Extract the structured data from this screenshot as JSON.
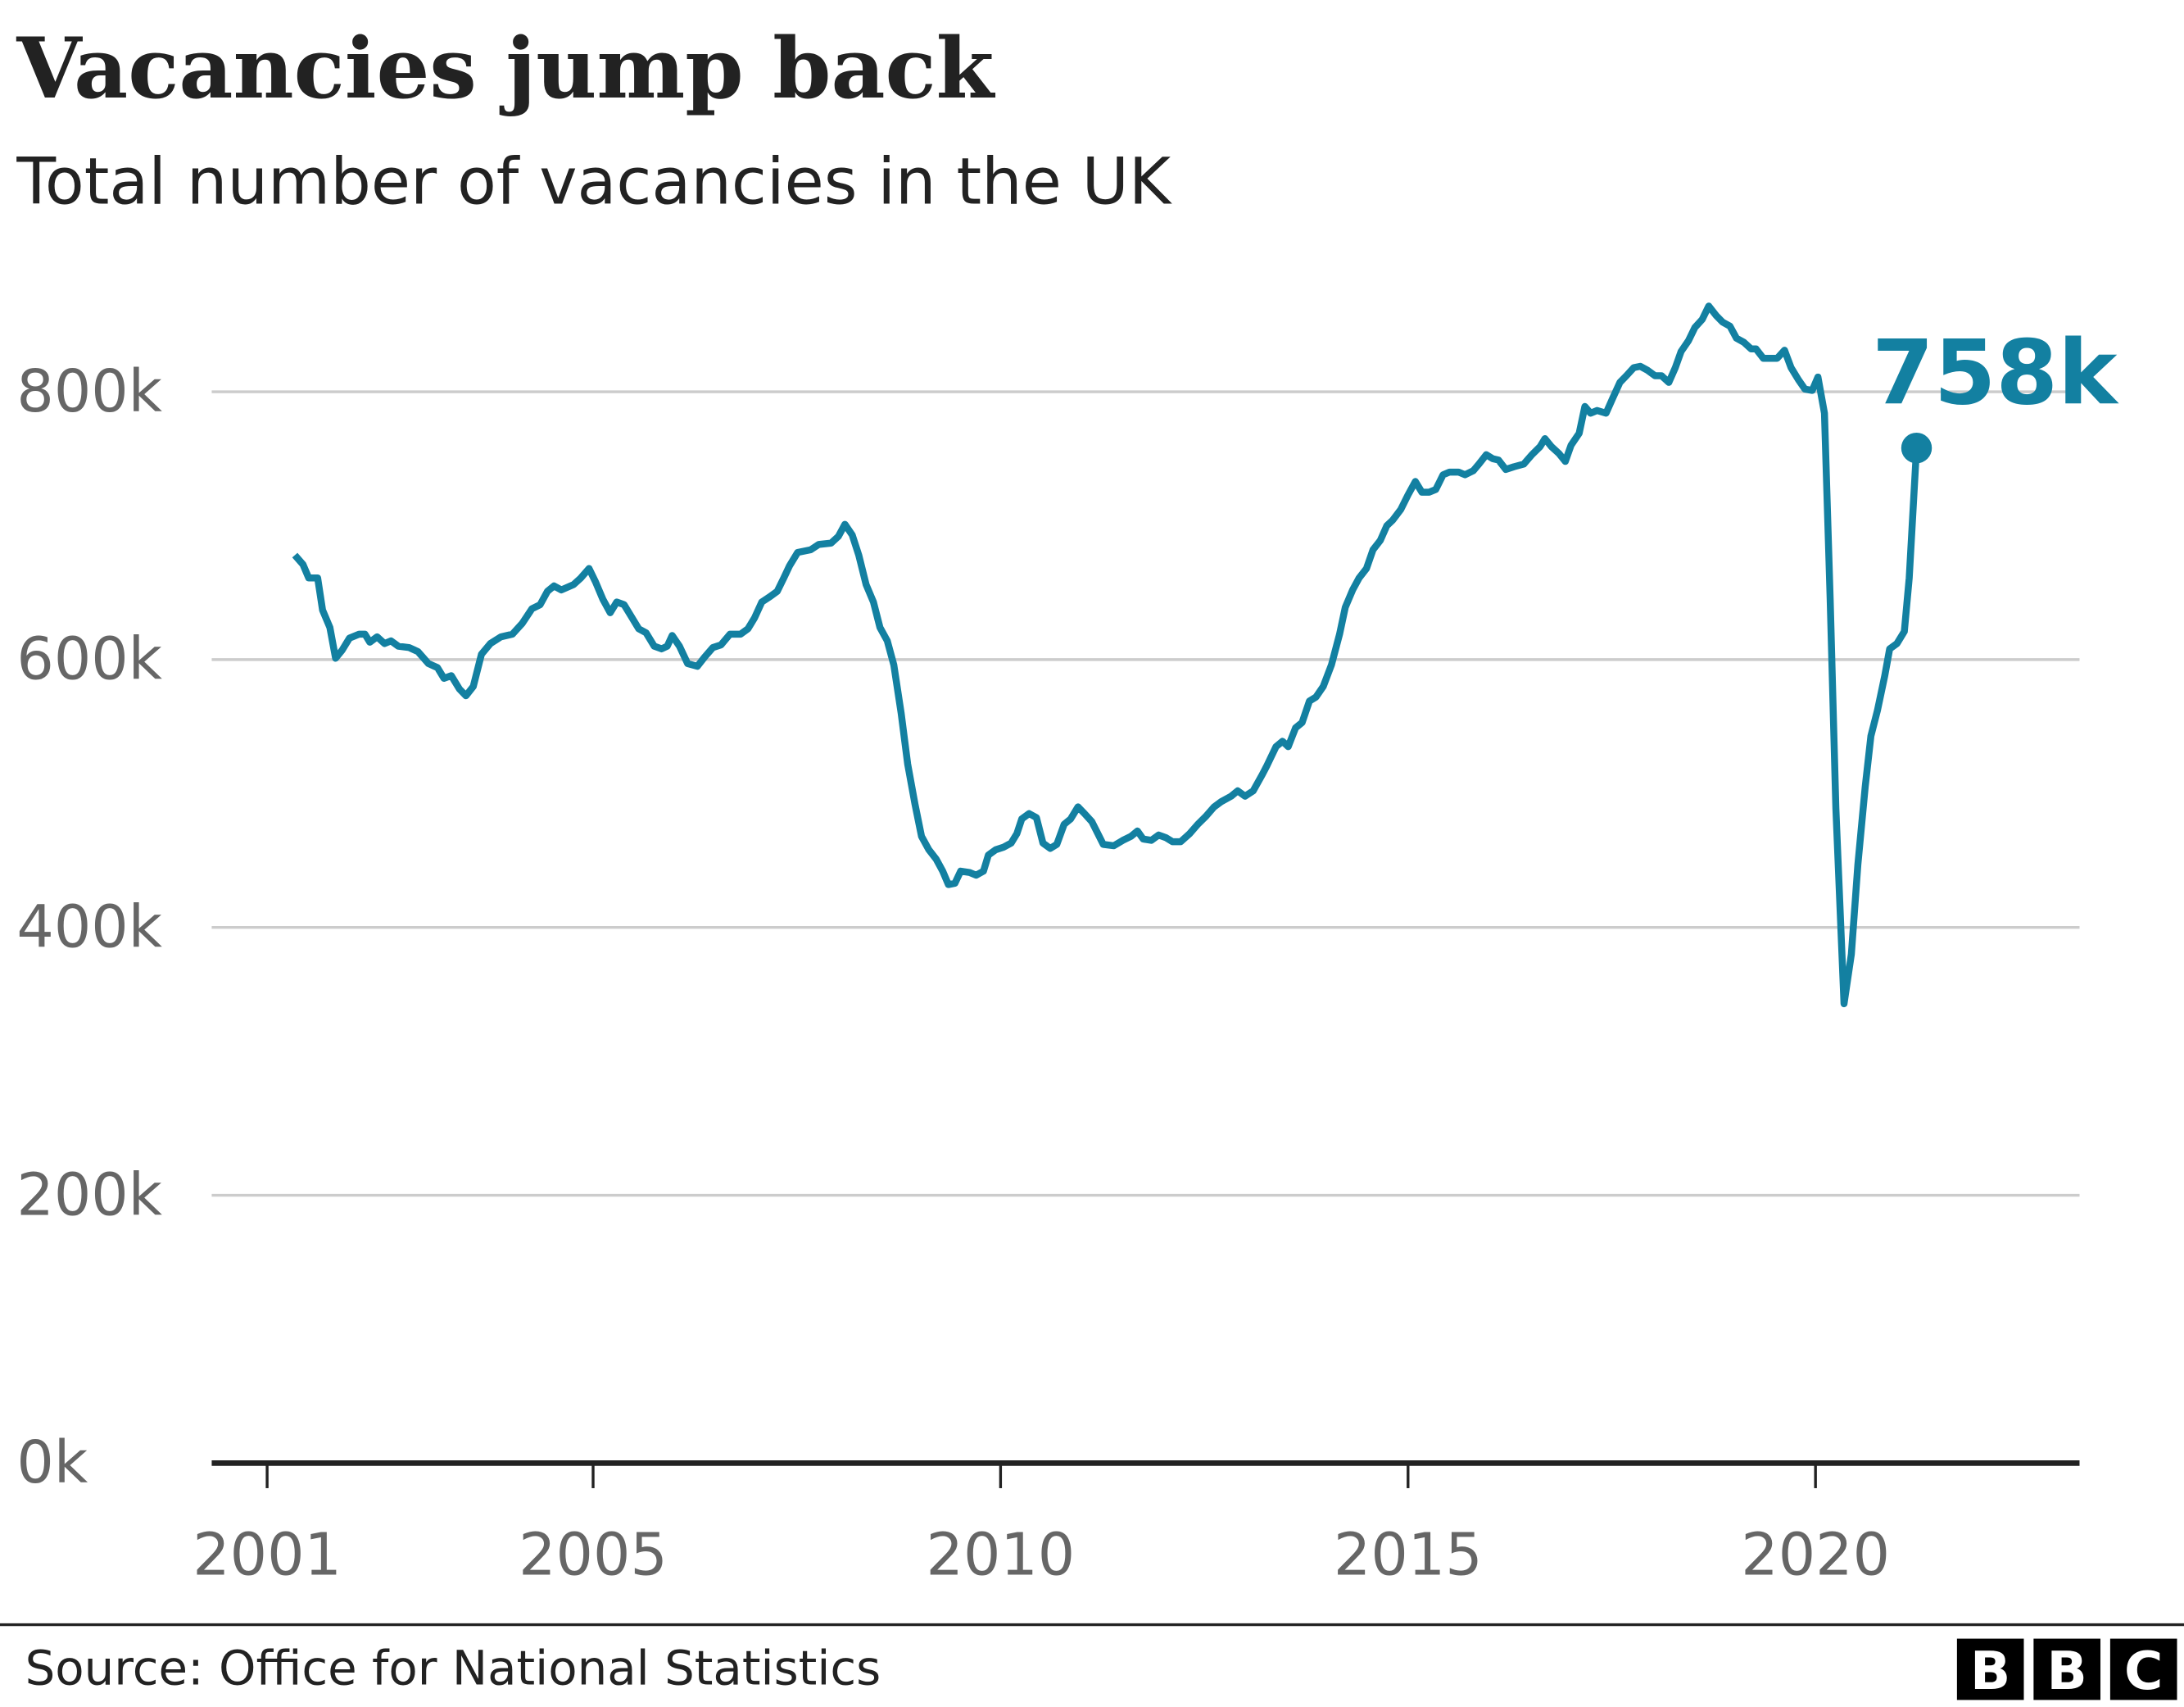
{
  "chart_data": {
    "type": "line",
    "title": "Vacancies jump back",
    "subtitle": "Total number of vacancies in the UK",
    "source": "Source: Office for National Statistics",
    "logo": [
      "B",
      "B",
      "C"
    ],
    "xlim": [
      2000.32,
      2023.24
    ],
    "xticks": [
      2001,
      2005,
      2010,
      2015,
      2020
    ],
    "ylim": [
      0,
      900
    ],
    "yticks": [
      {
        "value": 0,
        "label": "0k"
      },
      {
        "value": 200,
        "label": "200k"
      },
      {
        "value": 400,
        "label": "400k"
      },
      {
        "value": 600,
        "label": "600k"
      },
      {
        "value": 800,
        "label": "800k"
      }
    ],
    "grid": true,
    "series": [
      {
        "name": "Vacancies",
        "color": "#1380a1",
        "x": [
          2001.34,
          2001.44,
          2001.51,
          2001.62,
          2001.68,
          2001.77,
          2001.84,
          2001.92,
          2002.01,
          2002.13,
          2002.2,
          2002.26,
          2002.35,
          2002.44,
          2002.52,
          2002.61,
          2002.74,
          2002.85,
          2002.98,
          2003.09,
          2003.17,
          2003.26,
          2003.36,
          2003.44,
          2003.53,
          2003.63,
          2003.74,
          2003.87,
          2004.01,
          2004.13,
          2004.25,
          2004.35,
          2004.44,
          2004.52,
          2004.61,
          2004.76,
          2004.85,
          2004.95,
          2005.03,
          2005.12,
          2005.21,
          2005.29,
          2005.38,
          2005.48,
          2005.56,
          2005.65,
          2005.75,
          2005.84,
          2005.91,
          2005.97,
          2006.06,
          2006.16,
          2006.28,
          2006.37,
          2006.47,
          2006.57,
          2006.68,
          2006.81,
          2006.9,
          2006.98,
          2007.07,
          2007.17,
          2007.26,
          2007.34,
          2007.41,
          2007.51,
          2007.67,
          2007.77,
          2007.92,
          2008.01,
          2008.09,
          2008.18,
          2008.26,
          2008.35,
          2008.44,
          2008.52,
          2008.61,
          2008.69,
          2008.78,
          2008.86,
          2008.95,
          2009.03,
          2009.12,
          2009.21,
          2009.29,
          2009.36,
          2009.44,
          2009.51,
          2009.62,
          2009.7,
          2009.79,
          2009.85,
          2009.94,
          2010.04,
          2010.13,
          2010.2,
          2010.26,
          2010.35,
          2010.44,
          2010.52,
          2010.61,
          2010.69,
          2010.78,
          2010.86,
          2010.95,
          2011.03,
          2011.12,
          2011.26,
          2011.39,
          2011.5,
          2011.6,
          2011.68,
          2011.75,
          2011.85,
          2011.94,
          2012.03,
          2012.11,
          2012.21,
          2012.32,
          2012.42,
          2012.52,
          2012.62,
          2012.71,
          2012.83,
          2012.91,
          2013.0,
          2013.1,
          2013.21,
          2013.27,
          2013.38,
          2013.46,
          2013.53,
          2013.62,
          2013.7,
          2013.79,
          2013.87,
          2013.96,
          2014.06,
          2014.16,
          2014.23,
          2014.32,
          2014.4,
          2014.49,
          2014.57,
          2014.66,
          2014.74,
          2014.81,
          2014.91,
          2015.0,
          2015.09,
          2015.17,
          2015.26,
          2015.34,
          2015.43,
          2015.51,
          2015.62,
          2015.7,
          2015.8,
          2015.87,
          2015.96,
          2016.04,
          2016.11,
          2016.2,
          2016.3,
          2016.42,
          2016.52,
          2016.62,
          2016.68,
          2016.76,
          2016.85,
          2016.93,
          2017.0,
          2017.1,
          2017.17,
          2017.24,
          2017.32,
          2017.43,
          2017.51,
          2017.6,
          2017.68,
          2017.77,
          2017.85,
          2017.94,
          2018.03,
          2018.11,
          2018.2,
          2018.28,
          2018.35,
          2018.44,
          2018.52,
          2018.61,
          2018.69,
          2018.78,
          2018.86,
          2018.95,
          2019.03,
          2019.12,
          2019.21,
          2019.27,
          2019.36,
          2019.46,
          2019.53,
          2019.62,
          2019.7,
          2019.79,
          2019.87,
          2019.96,
          2020.03,
          2020.11,
          2020.18,
          2020.25,
          2020.35,
          2020.44,
          2020.52,
          2020.61,
          2020.68,
          2020.76,
          2020.85,
          2020.91,
          2021.0,
          2021.09,
          2021.15,
          2021.24
        ],
        "values": [
          678,
          671,
          661,
          661,
          637,
          624,
          601,
          607,
          616,
          619,
          619,
          613,
          617,
          612,
          614,
          610,
          609,
          606,
          597,
          594,
          586,
          588,
          578,
          573,
          580,
          604,
          612,
          617,
          619,
          627,
          638,
          641,
          651,
          655,
          652,
          656,
          661,
          668,
          658,
          645,
          635,
          643,
          641,
          631,
          623,
          620,
          610,
          608,
          610,
          618,
          610,
          597,
          595,
          602,
          609,
          611,
          619,
          619,
          623,
          631,
          643,
          647,
          651,
          661,
          670,
          680,
          682,
          686,
          687,
          692,
          701,
          693,
          678,
          656,
          643,
          624,
          614,
          596,
          560,
          522,
          492,
          468,
          458,
          451,
          442,
          432,
          433,
          442,
          441,
          439,
          442,
          454,
          458,
          460,
          463,
          470,
          481,
          485,
          482,
          463,
          459,
          462,
          477,
          481,
          490,
          485,
          479,
          462,
          461,
          465,
          468,
          472,
          466,
          465,
          469,
          467,
          464,
          464,
          470,
          477,
          483,
          490,
          494,
          498,
          502,
          498,
          502,
          514,
          521,
          535,
          539,
          535,
          549,
          553,
          569,
          572,
          580,
          596,
          619,
          639,
          652,
          661,
          668,
          682,
          689,
          700,
          704,
          712,
          723,
          733,
          725,
          725,
          727,
          738,
          740,
          740,
          738,
          741,
          746,
          753,
          750,
          749,
          742,
          744,
          746,
          753,
          759,
          765,
          759,
          754,
          748,
          760,
          769,
          789,
          784,
          786,
          784,
          795,
          807,
          812,
          818,
          819,
          816,
          812,
          812,
          807,
          818,
          830,
          838,
          848,
          854,
          864,
          857,
          852,
          849,
          840,
          837,
          832,
          832,
          825,
          825,
          825,
          831,
          818,
          809,
          802,
          801,
          811,
          784,
          645,
          489,
          343,
          380,
          447,
          505,
          543,
          562,
          588,
          608,
          612,
          621,
          661,
          758
        ],
        "last_label": "758k"
      }
    ]
  }
}
